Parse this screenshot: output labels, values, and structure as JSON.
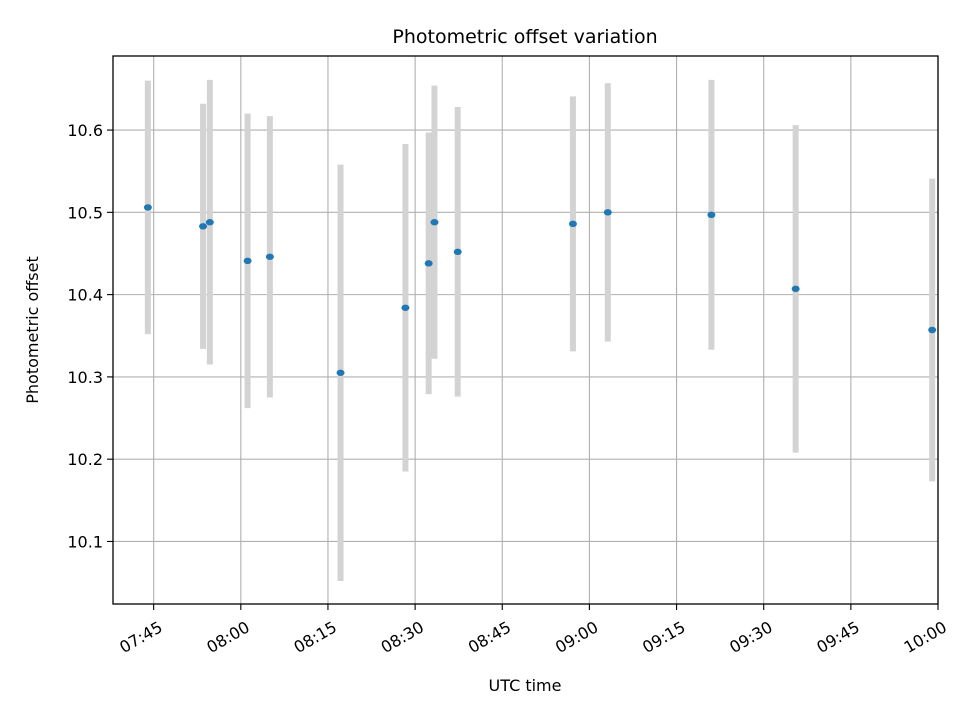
{
  "chart_data": {
    "type": "scatter",
    "title": "Photometric offset variation",
    "xlabel": "UTC time",
    "ylabel": "Photometric offset",
    "grid": true,
    "x_unit": "UTC time (HH:MM)",
    "xlim": [
      "07:38",
      "10:00"
    ],
    "ylim": [
      10.024,
      10.69
    ],
    "xticks": [
      "07:45",
      "08:00",
      "08:15",
      "08:30",
      "08:45",
      "09:00",
      "09:15",
      "09:30",
      "09:45",
      "10:00"
    ],
    "yticks": [
      10.1,
      10.2,
      10.3,
      10.4,
      10.5,
      10.6
    ],
    "ytick_labels": [
      "10.1",
      "10.2",
      "10.3",
      "10.4",
      "10.5",
      "10.6"
    ],
    "series": [
      {
        "color": "#1f77b4",
        "errorbar_color": "#d3d3d3",
        "points": [
          {
            "x": "07:44:00",
            "y": 10.506,
            "err": 0.154
          },
          {
            "x": "07:53:30",
            "y": 10.483,
            "err": 0.149
          },
          {
            "x": "07:54:40",
            "y": 10.488,
            "err": 0.173
          },
          {
            "x": "08:01:10",
            "y": 10.441,
            "err": 0.179
          },
          {
            "x": "08:05:00",
            "y": 10.446,
            "err": 0.171
          },
          {
            "x": "08:17:10",
            "y": 10.305,
            "err": 0.253
          },
          {
            "x": "08:28:20",
            "y": 10.384,
            "err": 0.199
          },
          {
            "x": "08:32:20",
            "y": 10.438,
            "err": 0.159
          },
          {
            "x": "08:33:20",
            "y": 10.488,
            "err": 0.166
          },
          {
            "x": "08:37:20",
            "y": 10.452,
            "err": 0.176
          },
          {
            "x": "08:57:10",
            "y": 10.486,
            "err": 0.155
          },
          {
            "x": "09:03:10",
            "y": 10.5,
            "err": 0.157
          },
          {
            "x": "09:21:00",
            "y": 10.497,
            "err": 0.164
          },
          {
            "x": "09:35:30",
            "y": 10.407,
            "err": 0.199
          },
          {
            "x": "09:59:00",
            "y": 10.357,
            "err": 0.184
          }
        ]
      }
    ]
  }
}
